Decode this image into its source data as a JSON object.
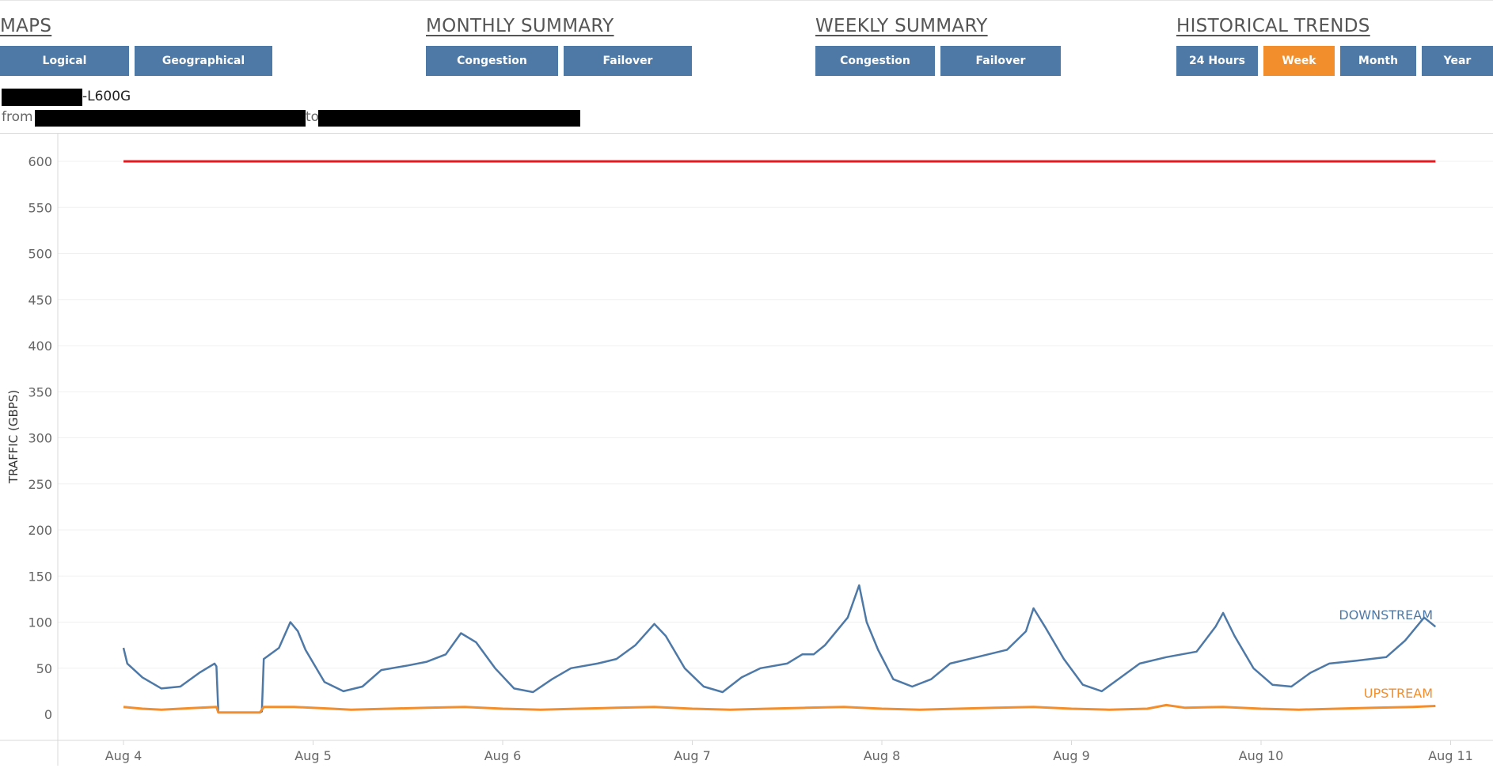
{
  "header": {
    "maps": {
      "title": "MAPS",
      "buttons": [
        "Logical",
        "Geographical"
      ]
    },
    "monthly_summary": {
      "title": "MONTHLY SUMMARY",
      "buttons": [
        "Congestion",
        "Failover"
      ]
    },
    "weekly_summary": {
      "title": "WEEKLY SUMMARY",
      "buttons": [
        "Congestion",
        "Failover"
      ]
    },
    "historical_trends": {
      "title": "HISTORICAL TRENDS",
      "buttons": [
        "24 Hours",
        "Week",
        "Month",
        "Year"
      ],
      "active": "Week"
    }
  },
  "info": {
    "device_suffix": "-L600G",
    "from_label": "from",
    "to_label": "to"
  },
  "colors": {
    "button": "#4e79a7",
    "button_active": "#f28e2b",
    "downstream": "#4e79a7",
    "upstream": "#f28e2b",
    "capacity": "#e8191f"
  },
  "chart_data": {
    "type": "line",
    "ylabel": "TRAFFIC (GBPS)",
    "xlabel": "",
    "ylim": [
      0,
      620
    ],
    "yticks": [
      0,
      50,
      100,
      150,
      200,
      250,
      300,
      350,
      400,
      450,
      500,
      550,
      600
    ],
    "xtick_labels": [
      "Aug 4",
      "Aug 5",
      "Aug 6",
      "Aug 7",
      "Aug 8",
      "Aug 9",
      "Aug 10",
      "Aug 11"
    ],
    "grid": "horizontal",
    "capacity_line": 600,
    "series": [
      {
        "name": "DOWNSTREAM",
        "color": "#4e79a7",
        "points": [
          [
            0.0,
            72
          ],
          [
            0.02,
            55
          ],
          [
            0.1,
            40
          ],
          [
            0.2,
            28
          ],
          [
            0.3,
            30
          ],
          [
            0.4,
            45
          ],
          [
            0.48,
            55
          ],
          [
            0.49,
            52
          ],
          [
            0.5,
            2
          ],
          [
            0.6,
            2
          ],
          [
            0.72,
            2
          ],
          [
            0.73,
            3
          ],
          [
            0.74,
            60
          ],
          [
            0.82,
            72
          ],
          [
            0.88,
            100
          ],
          [
            0.92,
            90
          ],
          [
            0.96,
            70
          ],
          [
            1.06,
            35
          ],
          [
            1.16,
            25
          ],
          [
            1.26,
            30
          ],
          [
            1.36,
            48
          ],
          [
            1.5,
            53
          ],
          [
            1.6,
            57
          ],
          [
            1.7,
            65
          ],
          [
            1.78,
            88
          ],
          [
            1.86,
            78
          ],
          [
            1.96,
            50
          ],
          [
            2.06,
            28
          ],
          [
            2.16,
            24
          ],
          [
            2.26,
            38
          ],
          [
            2.36,
            50
          ],
          [
            2.5,
            55
          ],
          [
            2.6,
            60
          ],
          [
            2.7,
            75
          ],
          [
            2.8,
            98
          ],
          [
            2.86,
            85
          ],
          [
            2.96,
            50
          ],
          [
            3.06,
            30
          ],
          [
            3.16,
            24
          ],
          [
            3.26,
            40
          ],
          [
            3.36,
            50
          ],
          [
            3.5,
            55
          ],
          [
            3.58,
            65
          ],
          [
            3.64,
            65
          ],
          [
            3.7,
            75
          ],
          [
            3.82,
            105
          ],
          [
            3.88,
            140
          ],
          [
            3.92,
            100
          ],
          [
            3.98,
            70
          ],
          [
            4.06,
            38
          ],
          [
            4.16,
            30
          ],
          [
            4.26,
            38
          ],
          [
            4.36,
            55
          ],
          [
            4.5,
            62
          ],
          [
            4.66,
            70
          ],
          [
            4.76,
            90
          ],
          [
            4.8,
            115
          ],
          [
            4.86,
            95
          ],
          [
            4.96,
            60
          ],
          [
            5.06,
            32
          ],
          [
            5.16,
            25
          ],
          [
            5.26,
            40
          ],
          [
            5.36,
            55
          ],
          [
            5.5,
            62
          ],
          [
            5.66,
            68
          ],
          [
            5.76,
            95
          ],
          [
            5.8,
            110
          ],
          [
            5.86,
            85
          ],
          [
            5.96,
            50
          ],
          [
            6.06,
            32
          ],
          [
            6.16,
            30
          ],
          [
            6.26,
            45
          ],
          [
            6.36,
            55
          ],
          [
            6.5,
            58
          ],
          [
            6.66,
            62
          ],
          [
            6.76,
            80
          ],
          [
            6.86,
            105
          ],
          [
            6.92,
            95
          ]
        ]
      },
      {
        "name": "UPSTREAM",
        "color": "#f28e2b",
        "points": [
          [
            0.0,
            8
          ],
          [
            0.1,
            6
          ],
          [
            0.2,
            5
          ],
          [
            0.3,
            6
          ],
          [
            0.4,
            7
          ],
          [
            0.49,
            8
          ],
          [
            0.5,
            2
          ],
          [
            0.72,
            2
          ],
          [
            0.74,
            8
          ],
          [
            0.9,
            8
          ],
          [
            1.1,
            6
          ],
          [
            1.2,
            5
          ],
          [
            1.4,
            6
          ],
          [
            1.6,
            7
          ],
          [
            1.8,
            8
          ],
          [
            2.0,
            6
          ],
          [
            2.2,
            5
          ],
          [
            2.4,
            6
          ],
          [
            2.6,
            7
          ],
          [
            2.8,
            8
          ],
          [
            3.0,
            6
          ],
          [
            3.2,
            5
          ],
          [
            3.4,
            6
          ],
          [
            3.6,
            7
          ],
          [
            3.8,
            8
          ],
          [
            4.0,
            6
          ],
          [
            4.2,
            5
          ],
          [
            4.4,
            6
          ],
          [
            4.6,
            7
          ],
          [
            4.8,
            8
          ],
          [
            5.0,
            6
          ],
          [
            5.2,
            5
          ],
          [
            5.4,
            6
          ],
          [
            5.5,
            10
          ],
          [
            5.6,
            7
          ],
          [
            5.8,
            8
          ],
          [
            6.0,
            6
          ],
          [
            6.2,
            5
          ],
          [
            6.4,
            6
          ],
          [
            6.6,
            7
          ],
          [
            6.8,
            8
          ],
          [
            6.92,
            9
          ]
        ]
      }
    ]
  }
}
